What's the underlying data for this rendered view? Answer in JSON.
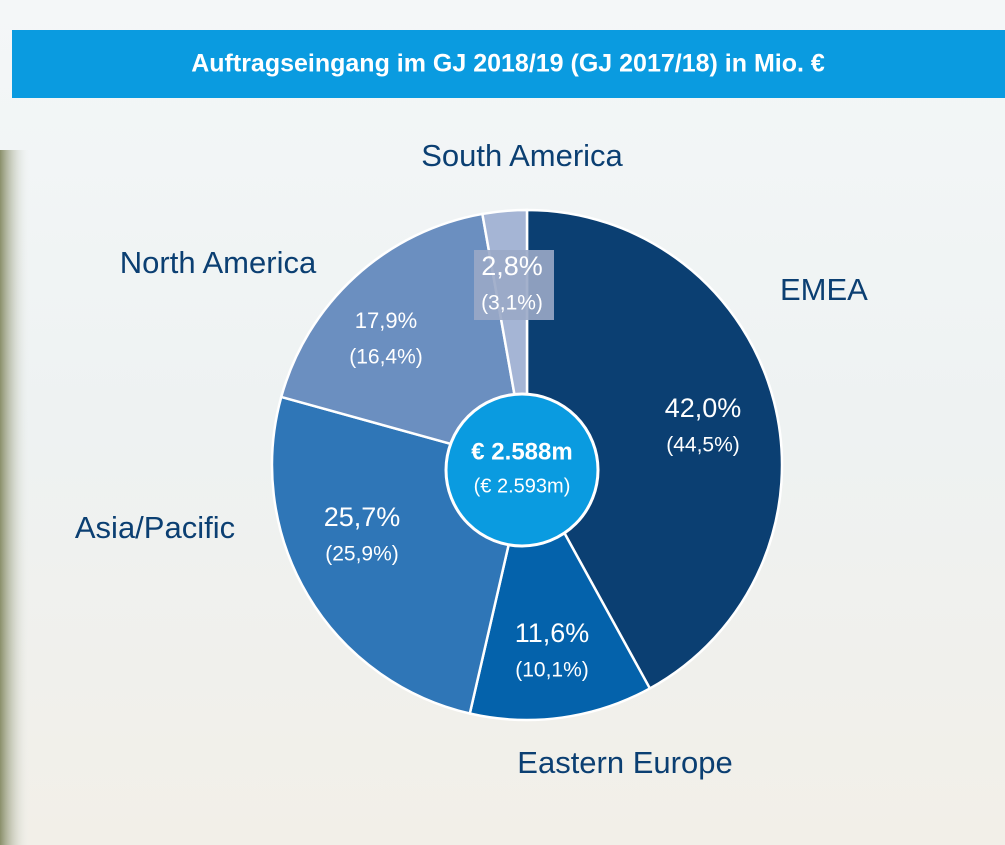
{
  "chart_data": {
    "type": "pie",
    "title": "Auftragseingang im GJ 2018/19 (GJ 2017/18) in Mio. €",
    "categories": [
      "EMEA",
      "Eastern Europe",
      "Asia/Pacific",
      "North America",
      "South America"
    ],
    "values": [
      42.0,
      11.6,
      25.7,
      17.9,
      2.8
    ],
    "value_labels": [
      "42,0%",
      "11,6%",
      "25,7%",
      "17,9%",
      "2,8%"
    ],
    "prior_values": [
      44.5,
      10.1,
      25.9,
      16.4,
      3.1
    ],
    "prior_value_labels": [
      "(44,5%)",
      "(10,1%)",
      "(25,9%)",
      "(16,4%)",
      "(3,1%)"
    ],
    "colors": [
      "#0b3f72",
      "#0462ab",
      "#2f76b7",
      "#6b8fc0",
      "#a5b5d5"
    ],
    "total_label": "€ 2.588m",
    "prior_total_label": "(€ 2.593m)"
  }
}
